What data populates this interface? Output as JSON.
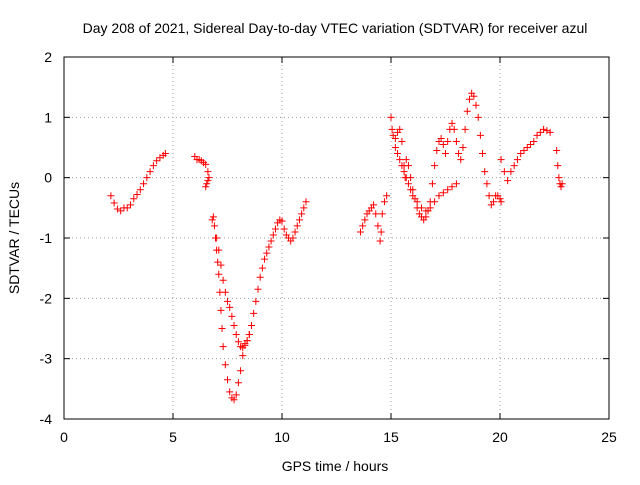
{
  "chart_data": {
    "type": "scatter",
    "title": "Day 208 of 2021, Sidereal Day-to-day VTEC variation (SDTVAR) for receiver azul",
    "xlabel": "GPS time / hours",
    "ylabel": "SDTVAR / TECUs",
    "xlim": [
      0,
      25
    ],
    "ylim": [
      -4,
      2
    ],
    "xticks": [
      0,
      5,
      10,
      15,
      20,
      25
    ],
    "yticks": [
      -4,
      -3,
      -2,
      -1,
      0,
      1,
      2
    ],
    "xtick_labels": [
      "0",
      "5",
      "10",
      "15",
      "20",
      "25"
    ],
    "ytick_labels": [
      "-4",
      "-3",
      "-2",
      "-1",
      "0",
      "1",
      "2"
    ],
    "grid": true,
    "marker": "plus",
    "color": "#ff0000",
    "series": [
      {
        "x": [
          2.15,
          2.3,
          2.45,
          2.6,
          2.75,
          2.9,
          3.05,
          3.2,
          3.35,
          3.5,
          3.65,
          3.8,
          3.95,
          4.1,
          4.25,
          4.4,
          4.55,
          4.65
        ],
        "y": [
          -0.3,
          -0.42,
          -0.52,
          -0.55,
          -0.5,
          -0.5,
          -0.45,
          -0.35,
          -0.28,
          -0.2,
          -0.1,
          0.0,
          0.1,
          0.2,
          0.28,
          0.33,
          0.37,
          0.4
        ]
      },
      {
        "x": [
          6.0,
          6.1,
          6.2,
          6.3,
          6.4,
          6.5,
          6.6,
          6.65,
          6.6,
          6.55,
          6.5
        ],
        "y": [
          0.35,
          0.3,
          0.3,
          0.28,
          0.25,
          0.22,
          0.1,
          0.0,
          -0.05,
          -0.1,
          -0.15
        ]
      },
      {
        "x": [
          6.8,
          6.85,
          6.9,
          6.95,
          7.0,
          7.05,
          7.1,
          7.15,
          7.2,
          7.25,
          7.3,
          7.4,
          7.5,
          7.6,
          7.7,
          7.8,
          7.9,
          8.0,
          8.1,
          8.2,
          8.3,
          8.4,
          8.5,
          8.6,
          8.7,
          8.8,
          8.9,
          9.0,
          9.1,
          9.2,
          9.3,
          9.4,
          9.5,
          9.6,
          9.7,
          9.8,
          9.9,
          10.0,
          10.1,
          10.2,
          10.3,
          10.4,
          10.5,
          10.6,
          10.7,
          10.8,
          10.9,
          11.0,
          11.1
        ],
        "y": [
          -0.7,
          -0.65,
          -0.8,
          -1.0,
          -1.2,
          -1.4,
          -1.6,
          -1.9,
          -2.2,
          -2.5,
          -2.8,
          -3.1,
          -3.35,
          -3.55,
          -3.65,
          -3.68,
          -3.6,
          -3.4,
          -3.2,
          -2.95,
          -2.75,
          -2.7,
          -2.6,
          -2.45,
          -2.25,
          -2.05,
          -1.85,
          -1.65,
          -1.5,
          -1.35,
          -1.25,
          -1.15,
          -1.05,
          -0.95,
          -0.85,
          -0.75,
          -0.7,
          -0.72,
          -0.85,
          -0.95,
          -1.0,
          -1.05,
          -1.0,
          -0.9,
          -0.8,
          -0.7,
          -0.6,
          -0.5,
          -0.4
        ]
      },
      {
        "x": [
          7.0,
          7.1,
          7.2,
          7.3,
          7.4,
          7.5,
          7.6,
          7.7,
          7.8,
          7.9,
          8.0,
          8.1,
          8.2,
          8.3,
          8.4,
          8.5,
          8.6
        ],
        "y": [
          -1.0,
          -1.2,
          -1.45,
          -1.7,
          -1.9,
          -2.05,
          -2.15,
          -2.3,
          -2.45,
          -2.6,
          -2.72,
          -2.8,
          -2.82,
          -2.78,
          -2.7,
          -2.6,
          -2.45
        ]
      },
      {
        "x": [
          13.6,
          13.7,
          13.8,
          13.9,
          14.0,
          14.1,
          14.2,
          14.3,
          14.4,
          14.5,
          14.55,
          14.6,
          14.7,
          14.8
        ],
        "y": [
          -0.9,
          -0.8,
          -0.7,
          -0.6,
          -0.55,
          -0.5,
          -0.45,
          -0.6,
          -0.8,
          -1.05,
          -0.9,
          -0.6,
          -0.4,
          -0.3
        ]
      },
      {
        "x": [
          15.0,
          15.05,
          15.1,
          15.2,
          15.3,
          15.4,
          15.5,
          15.6,
          15.65,
          15.7,
          15.8,
          15.9,
          16.0,
          16.1,
          16.2,
          16.3,
          16.4,
          16.5,
          16.6,
          16.7,
          16.8,
          16.9,
          17.0,
          17.1,
          17.2,
          17.3,
          17.4,
          17.5,
          17.6,
          17.7,
          17.8,
          17.9,
          18.0,
          18.1,
          18.2,
          18.3,
          18.4,
          18.5,
          18.6,
          18.7,
          18.8,
          18.9,
          19.0,
          19.1,
          19.2,
          19.3,
          19.4,
          19.5,
          19.6,
          19.7,
          19.8,
          19.9,
          20.0,
          20.05
        ],
        "y": [
          1.0,
          0.8,
          0.7,
          0.65,
          0.75,
          0.8,
          0.6,
          0.2,
          0.0,
          0.3,
          0.2,
          0.0,
          -0.2,
          -0.35,
          -0.5,
          -0.6,
          -0.65,
          -0.7,
          -0.65,
          -0.55,
          -0.4,
          -0.1,
          0.2,
          0.45,
          0.6,
          0.65,
          0.55,
          0.4,
          0.6,
          0.8,
          0.9,
          0.8,
          0.6,
          0.4,
          0.3,
          0.5,
          0.8,
          1.1,
          1.3,
          1.4,
          1.35,
          1.2,
          1.0,
          0.7,
          0.4,
          0.1,
          -0.1,
          -0.3,
          -0.45,
          -0.4,
          -0.3,
          -0.3,
          -0.35,
          -0.4
        ]
      },
      {
        "x": [
          15.2,
          15.3,
          15.4,
          15.5,
          15.6,
          15.7,
          15.8,
          15.9,
          16.0,
          16.2,
          16.4,
          16.6,
          16.8,
          17.0,
          17.2,
          17.4,
          17.6,
          17.8,
          18.0
        ],
        "y": [
          0.5,
          0.4,
          0.3,
          0.2,
          0.1,
          0.0,
          -0.1,
          -0.2,
          -0.3,
          -0.4,
          -0.5,
          -0.55,
          -0.5,
          -0.4,
          -0.3,
          -0.25,
          -0.2,
          -0.15,
          -0.1
        ]
      },
      {
        "x": [
          20.05,
          20.2,
          20.35,
          20.5,
          20.65,
          20.8,
          20.95,
          21.1,
          21.25,
          21.4,
          21.55,
          21.7,
          21.85,
          22.0,
          22.15,
          22.3
        ],
        "y": [
          0.3,
          0.1,
          -0.05,
          0.1,
          0.2,
          0.3,
          0.4,
          0.45,
          0.5,
          0.55,
          0.6,
          0.7,
          0.75,
          0.8,
          0.78,
          0.75
        ]
      },
      {
        "x": [
          22.6,
          22.65,
          22.7,
          22.75,
          22.8,
          22.85
        ],
        "y": [
          0.45,
          0.2,
          0.0,
          -0.1,
          -0.15,
          -0.1
        ]
      }
    ]
  }
}
